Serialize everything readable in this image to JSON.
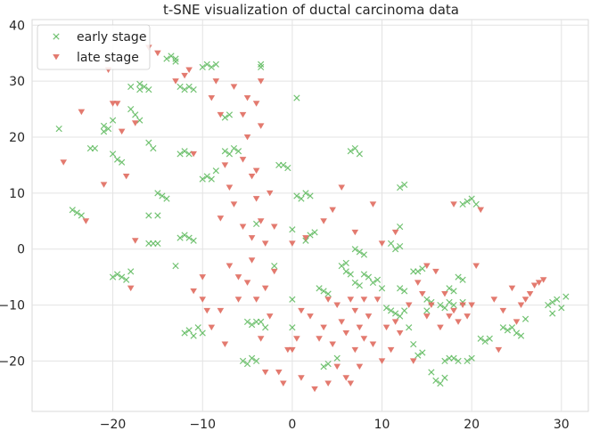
{
  "chart_data": {
    "type": "scatter",
    "title": "t-SNE visualization of ductal carcinoma data",
    "xlabel": "",
    "ylabel": "",
    "xlim": [
      -29,
      33
    ],
    "ylim": [
      -29,
      41
    ],
    "xticks": [
      -20,
      -10,
      0,
      10,
      20,
      30
    ],
    "yticks": [
      -20,
      -10,
      0,
      10,
      20,
      30,
      40
    ],
    "xtick_labels": [
      "−20",
      "−10",
      "0",
      "10",
      "20",
      "30"
    ],
    "ytick_labels": [
      "−20",
      "−10",
      "0",
      "10",
      "20",
      "30",
      "40"
    ],
    "grid": true,
    "legend_position": "top-left",
    "series": [
      {
        "name": "early stage",
        "marker": "x",
        "color": "#5cb85c",
        "points": [
          [
            -26,
            21.5
          ],
          [
            -24.5,
            7
          ],
          [
            -24,
            6.5
          ],
          [
            -23.5,
            6
          ],
          [
            -22.5,
            18
          ],
          [
            -22,
            18
          ],
          [
            -21,
            22
          ],
          [
            -20.5,
            21.5
          ],
          [
            -21,
            21
          ],
          [
            -20,
            23
          ],
          [
            -20,
            17
          ],
          [
            -19.5,
            16
          ],
          [
            -19,
            15.5
          ],
          [
            -19.5,
            -4.5
          ],
          [
            -19,
            -5
          ],
          [
            -20,
            -5
          ],
          [
            -18.5,
            -5.5
          ],
          [
            -18,
            -4
          ],
          [
            -18,
            25
          ],
          [
            -17.5,
            24
          ],
          [
            -18,
            29
          ],
          [
            -17,
            29.5
          ],
          [
            -17,
            28.5
          ],
          [
            -16.5,
            29
          ],
          [
            -16,
            28.5
          ],
          [
            -17,
            23
          ],
          [
            -16,
            19
          ],
          [
            -15.5,
            18
          ],
          [
            -16,
            6
          ],
          [
            -15,
            6
          ],
          [
            -16,
            1
          ],
          [
            -15.5,
            1
          ],
          [
            -15,
            1
          ],
          [
            -15,
            10
          ],
          [
            -14.5,
            9.5
          ],
          [
            -14,
            9
          ],
          [
            -14,
            34
          ],
          [
            -13.5,
            34.5
          ],
          [
            -13,
            34
          ],
          [
            -13,
            33.5
          ],
          [
            -12.5,
            29
          ],
          [
            -12,
            28.5
          ],
          [
            -11.5,
            29
          ],
          [
            -11,
            28.5
          ],
          [
            -12.5,
            17
          ],
          [
            -12,
            17.5
          ],
          [
            -11.5,
            17
          ],
          [
            -13,
            -3
          ],
          [
            -12.5,
            2
          ],
          [
            -12,
            2.5
          ],
          [
            -11.5,
            2
          ],
          [
            -11,
            1.5
          ],
          [
            -12,
            -15
          ],
          [
            -11.5,
            -14.5
          ],
          [
            -11,
            -15.5
          ],
          [
            -10.5,
            -14
          ],
          [
            -10,
            -15
          ],
          [
            -10,
            32.5
          ],
          [
            -9.5,
            33
          ],
          [
            -9,
            32.5
          ],
          [
            -8.5,
            33
          ],
          [
            -10,
            12.5
          ],
          [
            -9.5,
            13
          ],
          [
            -9,
            12.5
          ],
          [
            -8.5,
            14
          ],
          [
            -7.5,
            23.5
          ],
          [
            -7,
            24
          ],
          [
            -7.5,
            17.5
          ],
          [
            -7,
            17
          ],
          [
            -6.5,
            18
          ],
          [
            -6,
            17.5
          ],
          [
            -5,
            -13
          ],
          [
            -4.5,
            -13.5
          ],
          [
            -4,
            -13
          ],
          [
            -5.5,
            -20
          ],
          [
            -5,
            -20.5
          ],
          [
            -4.5,
            -19.5
          ],
          [
            -4,
            -20
          ],
          [
            -3.5,
            -13
          ],
          [
            -4,
            4.5
          ],
          [
            -3.5,
            33
          ],
          [
            -3.5,
            32.5
          ],
          [
            -3,
            -14
          ],
          [
            -2,
            -3
          ],
          [
            -1.5,
            15
          ],
          [
            -1,
            15
          ],
          [
            -0.5,
            14.5
          ],
          [
            0,
            -9
          ],
          [
            0,
            -14
          ],
          [
            0,
            3.5
          ],
          [
            0.5,
            27
          ],
          [
            0.5,
            9.5
          ],
          [
            1,
            9
          ],
          [
            1.5,
            10
          ],
          [
            2,
            9.5
          ],
          [
            2.5,
            3
          ],
          [
            2,
            2.5
          ],
          [
            1.5,
            1.5
          ],
          [
            3,
            -7
          ],
          [
            3.5,
            -7.5
          ],
          [
            4,
            -8
          ],
          [
            3.5,
            -21
          ],
          [
            4,
            -20.5
          ],
          [
            5,
            -19.5
          ],
          [
            5.5,
            -3
          ],
          [
            6,
            -2.5
          ],
          [
            6,
            -4
          ],
          [
            6.5,
            -4.5
          ],
          [
            7,
            -6
          ],
          [
            7.5,
            -6.5
          ],
          [
            6.5,
            17.5
          ],
          [
            7,
            18
          ],
          [
            7.5,
            17
          ],
          [
            7,
            0
          ],
          [
            7.5,
            -0.5
          ],
          [
            8,
            -1
          ],
          [
            8,
            -4.5
          ],
          [
            8.5,
            -5
          ],
          [
            9,
            -6
          ],
          [
            9.5,
            -5.5
          ],
          [
            10,
            -7
          ],
          [
            10.5,
            -10.5
          ],
          [
            11,
            -11
          ],
          [
            11.5,
            -11.5
          ],
          [
            12,
            -12
          ],
          [
            12.5,
            -11
          ],
          [
            11,
            1
          ],
          [
            11.5,
            0
          ],
          [
            12,
            0.5
          ],
          [
            12,
            4
          ],
          [
            12,
            -7
          ],
          [
            12.5,
            -7.5
          ],
          [
            12,
            11
          ],
          [
            12.5,
            11.5
          ],
          [
            13,
            -14
          ],
          [
            13.5,
            -17
          ],
          [
            14,
            -19
          ],
          [
            14.5,
            -18.5
          ],
          [
            13.5,
            -4
          ],
          [
            14,
            -4
          ],
          [
            14.5,
            -3.5
          ],
          [
            15,
            -9
          ],
          [
            15.5,
            -9.5
          ],
          [
            15,
            -11
          ],
          [
            15.5,
            -22
          ],
          [
            16,
            -23.5
          ],
          [
            16.5,
            -24
          ],
          [
            17,
            -23
          ],
          [
            17,
            -20
          ],
          [
            17.5,
            -19.5
          ],
          [
            18,
            -19.5
          ],
          [
            18.5,
            -20
          ],
          [
            19.5,
            -20
          ],
          [
            20,
            -19.5
          ],
          [
            16.5,
            -10
          ],
          [
            17,
            -10.5
          ],
          [
            17.5,
            -9.5
          ],
          [
            18,
            -10
          ],
          [
            17.5,
            -7
          ],
          [
            18,
            -7.5
          ],
          [
            19,
            8
          ],
          [
            19.5,
            8.5
          ],
          [
            20,
            9
          ],
          [
            20.5,
            8
          ],
          [
            19,
            -9.5
          ],
          [
            18.5,
            -5
          ],
          [
            19,
            -5.5
          ],
          [
            21,
            -16
          ],
          [
            21.5,
            -16.5
          ],
          [
            22,
            -16
          ],
          [
            23.5,
            -14
          ],
          [
            24,
            -14.5
          ],
          [
            24.5,
            -14
          ],
          [
            25,
            -15
          ],
          [
            25.5,
            -15.5
          ],
          [
            26,
            -12.5
          ],
          [
            28.5,
            -10
          ],
          [
            29,
            -9.5
          ],
          [
            29.5,
            -9
          ],
          [
            30,
            -10.5
          ],
          [
            29,
            -11.5
          ],
          [
            30.5,
            -8.5
          ]
        ]
      },
      {
        "name": "late stage",
        "marker": "v",
        "color": "#e06c5f",
        "points": [
          [
            -25.5,
            15.5
          ],
          [
            -23.5,
            24.5
          ],
          [
            -23,
            5
          ],
          [
            -21,
            11.5
          ],
          [
            -20.5,
            32
          ],
          [
            -20,
            26
          ],
          [
            -19.5,
            26
          ],
          [
            -19,
            21
          ],
          [
            -18.5,
            13
          ],
          [
            -18,
            -7
          ],
          [
            -17.5,
            22.5
          ],
          [
            -17.5,
            1.5
          ],
          [
            -16,
            36
          ],
          [
            -15,
            35
          ],
          [
            -13,
            30
          ],
          [
            -12,
            31
          ],
          [
            -11.5,
            32
          ],
          [
            -11,
            17
          ],
          [
            -11,
            -7.5
          ],
          [
            -10,
            -5
          ],
          [
            -10,
            -9
          ],
          [
            -9.5,
            -11
          ],
          [
            -9,
            -14
          ],
          [
            -9,
            27
          ],
          [
            -8.5,
            30
          ],
          [
            -8,
            24
          ],
          [
            -8,
            5.5
          ],
          [
            -8,
            -11
          ],
          [
            -7.5,
            15
          ],
          [
            -7.5,
            -17
          ],
          [
            -7,
            11
          ],
          [
            -7,
            -3
          ],
          [
            -6.5,
            29
          ],
          [
            -6.5,
            8
          ],
          [
            -6,
            -5
          ],
          [
            -6,
            -9
          ],
          [
            -5.5,
            24
          ],
          [
            -5.5,
            16
          ],
          [
            -5.5,
            4
          ],
          [
            -5,
            27
          ],
          [
            -5,
            20
          ],
          [
            -5,
            -6
          ],
          [
            -4.5,
            13
          ],
          [
            -4.5,
            2
          ],
          [
            -4.5,
            -2
          ],
          [
            -4,
            26
          ],
          [
            -4,
            14
          ],
          [
            -4,
            9
          ],
          [
            -4,
            -9
          ],
          [
            -3.5,
            30
          ],
          [
            -3.5,
            22
          ],
          [
            -3.5,
            5
          ],
          [
            -3.5,
            -16
          ],
          [
            -3,
            1
          ],
          [
            -3,
            -7
          ],
          [
            -3,
            -22
          ],
          [
            -2.5,
            10
          ],
          [
            -2.5,
            -12
          ],
          [
            -2,
            4
          ],
          [
            -2,
            -4
          ],
          [
            -1.5,
            -22
          ],
          [
            -1,
            -24
          ],
          [
            -0.5,
            -18
          ],
          [
            0,
            1
          ],
          [
            0,
            -18
          ],
          [
            0.5,
            -16
          ],
          [
            1,
            -11
          ],
          [
            1,
            -23
          ],
          [
            1.5,
            2
          ],
          [
            2,
            -12
          ],
          [
            2.5,
            -25
          ],
          [
            3,
            -16
          ],
          [
            3.5,
            5
          ],
          [
            3.5,
            -14
          ],
          [
            4,
            -9
          ],
          [
            4,
            -24
          ],
          [
            4.5,
            7
          ],
          [
            4.5,
            -17
          ],
          [
            5,
            -10
          ],
          [
            5,
            -21
          ],
          [
            5.5,
            11
          ],
          [
            5.5,
            -13
          ],
          [
            6,
            -15
          ],
          [
            6,
            -23
          ],
          [
            6.5,
            -9
          ],
          [
            6.5,
            -24
          ],
          [
            7,
            3
          ],
          [
            7,
            -11
          ],
          [
            7,
            -18
          ],
          [
            7.5,
            -14
          ],
          [
            7.5,
            -21
          ],
          [
            8,
            -9
          ],
          [
            8,
            -16
          ],
          [
            8.5,
            -12
          ],
          [
            9,
            8
          ],
          [
            9,
            -17
          ],
          [
            9.5,
            -9
          ],
          [
            10,
            -20
          ],
          [
            10.5,
            -14
          ],
          [
            11,
            -18
          ],
          [
            11.5,
            -13
          ],
          [
            12,
            -15
          ],
          [
            13,
            -10
          ],
          [
            13.5,
            -20
          ],
          [
            14,
            -6
          ],
          [
            14.5,
            -8
          ],
          [
            15,
            -12
          ],
          [
            15.5,
            -10
          ],
          [
            16,
            -4
          ],
          [
            16.5,
            -14
          ],
          [
            17,
            -8
          ],
          [
            17.5,
            -12
          ],
          [
            18,
            -11
          ],
          [
            18.5,
            -13
          ],
          [
            19,
            -10
          ],
          [
            19.5,
            -12
          ],
          [
            20,
            -10
          ],
          [
            20.5,
            -3
          ],
          [
            22.5,
            -9
          ],
          [
            23,
            -18
          ],
          [
            23.5,
            -11
          ],
          [
            24.5,
            -7
          ],
          [
            25,
            -13
          ],
          [
            25.5,
            -10
          ],
          [
            26,
            -9
          ],
          [
            26.5,
            -8
          ],
          [
            27,
            -6.5
          ],
          [
            27.5,
            -6
          ],
          [
            28,
            -5.5
          ],
          [
            21,
            7
          ],
          [
            18,
            8
          ],
          [
            15,
            -3
          ],
          [
            10,
            1
          ],
          [
            11.5,
            3
          ]
        ]
      }
    ]
  }
}
